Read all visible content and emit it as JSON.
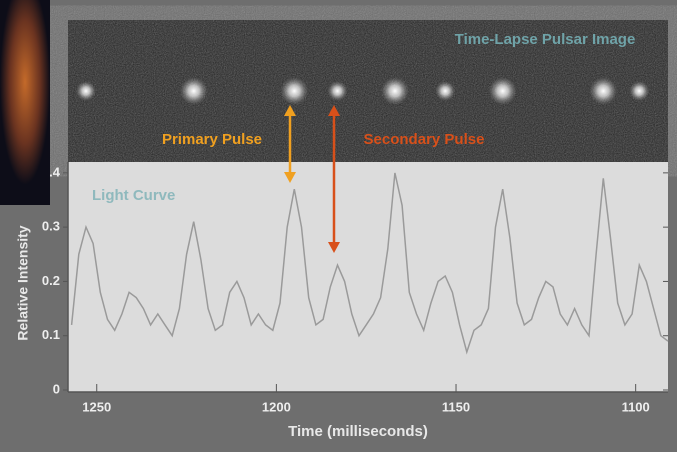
{
  "chart_data": {
    "type": "line",
    "title": "Time-Lapse Pulsar Image",
    "subtitle": "Light Curve",
    "annotations": [
      "Primary Pulse",
      "Secondary Pulse"
    ],
    "x_label": "Time (milliseconds)",
    "y_label": "Relative Intensity",
    "x": [
      1257,
      1255,
      1253,
      1251,
      1249,
      1247,
      1245,
      1243,
      1241,
      1239,
      1237,
      1235,
      1233,
      1231,
      1229,
      1227,
      1225,
      1223,
      1221,
      1219,
      1217,
      1215,
      1213,
      1211,
      1209,
      1207,
      1205,
      1203,
      1201,
      1199,
      1197,
      1195,
      1193,
      1191,
      1189,
      1187,
      1185,
      1183,
      1181,
      1179,
      1177,
      1175,
      1173,
      1171,
      1169,
      1167,
      1165,
      1163,
      1161,
      1159,
      1157,
      1155,
      1153,
      1151,
      1149,
      1147,
      1145,
      1143,
      1141,
      1139,
      1137,
      1135,
      1133,
      1131,
      1129,
      1127,
      1125,
      1123,
      1121,
      1119,
      1117,
      1115,
      1113,
      1111,
      1109,
      1107,
      1105,
      1103,
      1101,
      1099,
      1097,
      1095,
      1093,
      1091
    ],
    "values": [
      0.12,
      0.25,
      0.3,
      0.27,
      0.18,
      0.13,
      0.11,
      0.14,
      0.18,
      0.17,
      0.15,
      0.12,
      0.14,
      0.12,
      0.1,
      0.15,
      0.25,
      0.31,
      0.24,
      0.15,
      0.11,
      0.12,
      0.18,
      0.2,
      0.17,
      0.12,
      0.14,
      0.12,
      0.11,
      0.16,
      0.3,
      0.37,
      0.3,
      0.17,
      0.12,
      0.13,
      0.19,
      0.23,
      0.2,
      0.14,
      0.1,
      0.12,
      0.14,
      0.17,
      0.26,
      0.4,
      0.34,
      0.18,
      0.14,
      0.11,
      0.16,
      0.2,
      0.21,
      0.18,
      0.12,
      0.07,
      0.11,
      0.12,
      0.15,
      0.3,
      0.37,
      0.28,
      0.16,
      0.12,
      0.13,
      0.17,
      0.2,
      0.19,
      0.14,
      0.12,
      0.15,
      0.12,
      0.1,
      0.25,
      0.39,
      0.28,
      0.16,
      0.12,
      0.14,
      0.23,
      0.2,
      0.15,
      0.1,
      0.09
    ],
    "color": "#9a9a9a",
    "xlim": [
      1258,
      1091
    ],
    "xticks": [
      1250,
      1200,
      1150,
      1100
    ],
    "ylim": [
      0,
      0.42
    ],
    "yticks": [
      0,
      0.1,
      0.2,
      0.3,
      0.4
    ]
  }
}
